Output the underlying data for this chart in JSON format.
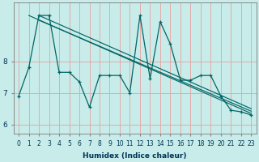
{
  "xlabel": "Humidex (Indice chaleur)",
  "background_color": "#c8ece9",
  "grid_color": "#e8a0a0",
  "line_color": "#006666",
  "x_zigzag": [
    0,
    1,
    2,
    3,
    4,
    5,
    6,
    7,
    8,
    9,
    10,
    11,
    12,
    13,
    14,
    15,
    16,
    17,
    18,
    19,
    20,
    21,
    22,
    23
  ],
  "y_zigzag": [
    6.9,
    7.8,
    9.45,
    9.45,
    7.65,
    7.65,
    7.35,
    6.55,
    7.55,
    7.55,
    7.55,
    7.0,
    9.45,
    7.45,
    9.25,
    8.55,
    7.4,
    7.4,
    7.55,
    7.55,
    6.9,
    6.45,
    6.4,
    6.3
  ],
  "x_trend1_start": 1,
  "x_trend1_end": 23,
  "y_trend1_start": 9.45,
  "y_trend1_end": 6.35,
  "x_trend2_start": 2,
  "x_trend2_end": 23,
  "y_trend2_start": 9.45,
  "y_trend2_end": 6.5,
  "x_trend3_start": 2,
  "x_trend3_end": 23,
  "y_trend3_start": 9.3,
  "y_trend3_end": 6.42,
  "ylim_bottom": 5.7,
  "ylim_top": 9.85,
  "yticks": [
    6,
    7,
    8
  ],
  "xticks": [
    0,
    1,
    2,
    3,
    4,
    5,
    6,
    7,
    8,
    9,
    10,
    11,
    12,
    13,
    14,
    15,
    16,
    17,
    18,
    19,
    20,
    21,
    22,
    23
  ],
  "xlabel_fontsize": 6.5,
  "tick_labelsize": 5.5,
  "ytick_labelsize": 6.5
}
